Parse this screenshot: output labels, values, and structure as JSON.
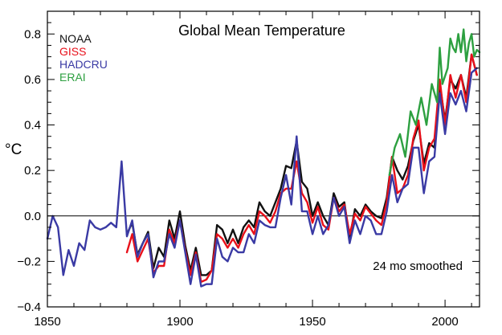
{
  "chart_data": {
    "type": "line",
    "title": "Global Mean Temperature",
    "ylabel": "°C",
    "xlabel": "",
    "xlim": [
      1850,
      2013
    ],
    "ylim": [
      -0.4,
      0.9
    ],
    "x_ticks": [
      1850,
      1900,
      1950,
      2000
    ],
    "y_ticks": [
      -0.4,
      -0.2,
      0.0,
      0.2,
      0.4,
      0.6,
      0.8
    ],
    "y_tick_labels": [
      "−0.4",
      "−0.2",
      "0.0",
      "0.2",
      "0.4",
      "0.6",
      "0.8"
    ],
    "zero_line": true,
    "grid": false,
    "legend_position": "top-left",
    "annotation": "24 mo smoothed",
    "series": [
      {
        "name": "NOAA",
        "color": "#111111",
        "x": [
          1880,
          1882,
          1884,
          1886,
          1888,
          1890,
          1892,
          1894,
          1896,
          1898,
          1900,
          1902,
          1904,
          1906,
          1908,
          1910,
          1912,
          1914,
          1916,
          1918,
          1920,
          1922,
          1924,
          1926,
          1928,
          1930,
          1932,
          1934,
          1936,
          1938,
          1940,
          1942,
          1944,
          1946,
          1948,
          1950,
          1952,
          1954,
          1956,
          1958,
          1960,
          1962,
          1964,
          1966,
          1968,
          1970,
          1972,
          1974,
          1976,
          1978,
          1980,
          1982,
          1984,
          1986,
          1988,
          1990,
          1992,
          1994,
          1996,
          1998,
          2000,
          2002,
          2004,
          2006,
          2008,
          2010,
          2012
        ],
        "y": [
          -0.08,
          -0.03,
          -0.17,
          -0.12,
          -0.07,
          -0.23,
          -0.14,
          -0.18,
          -0.02,
          -0.1,
          0.02,
          -0.13,
          -0.24,
          -0.14,
          -0.26,
          -0.26,
          -0.24,
          -0.04,
          -0.06,
          -0.12,
          -0.06,
          -0.12,
          -0.05,
          -0.02,
          -0.05,
          0.06,
          0.02,
          0.0,
          0.06,
          0.12,
          0.22,
          0.21,
          0.33,
          0.15,
          0.12,
          0.0,
          0.06,
          0.0,
          -0.04,
          0.1,
          0.04,
          0.06,
          -0.1,
          0.03,
          0.0,
          0.05,
          0.02,
          0.0,
          -0.01,
          0.08,
          0.26,
          0.2,
          0.16,
          0.22,
          0.33,
          0.4,
          0.23,
          0.32,
          0.3,
          0.58,
          0.42,
          0.6,
          0.56,
          0.62,
          0.52,
          0.71,
          0.62
        ]
      },
      {
        "name": "GISS",
        "color": "#e8101a",
        "x": [
          1880,
          1882,
          1884,
          1886,
          1888,
          1890,
          1892,
          1894,
          1896,
          1898,
          1900,
          1902,
          1904,
          1906,
          1908,
          1910,
          1912,
          1914,
          1916,
          1918,
          1920,
          1922,
          1924,
          1926,
          1928,
          1930,
          1932,
          1934,
          1936,
          1938,
          1940,
          1942,
          1944,
          1946,
          1948,
          1950,
          1952,
          1954,
          1956,
          1958,
          1960,
          1962,
          1964,
          1966,
          1968,
          1970,
          1972,
          1974,
          1976,
          1978,
          1980,
          1982,
          1984,
          1986,
          1988,
          1990,
          1992,
          1994,
          1996,
          1998,
          2000,
          2002,
          2004,
          2006,
          2008,
          2010,
          2012
        ],
        "y": [
          -0.16,
          -0.08,
          -0.2,
          -0.15,
          -0.1,
          -0.25,
          -0.22,
          -0.22,
          -0.06,
          -0.12,
          -0.02,
          -0.15,
          -0.26,
          -0.16,
          -0.29,
          -0.28,
          -0.24,
          -0.08,
          -0.1,
          -0.14,
          -0.1,
          -0.14,
          -0.08,
          -0.04,
          -0.08,
          0.02,
          0.0,
          -0.03,
          0.02,
          0.1,
          0.12,
          0.12,
          0.24,
          0.1,
          0.06,
          -0.03,
          0.04,
          -0.04,
          -0.06,
          0.08,
          0.02,
          0.05,
          -0.08,
          0.01,
          -0.02,
          0.04,
          0.01,
          -0.02,
          -0.04,
          0.06,
          0.26,
          0.1,
          0.12,
          0.18,
          0.34,
          0.42,
          0.2,
          0.3,
          0.34,
          0.6,
          0.4,
          0.62,
          0.52,
          0.62,
          0.5,
          0.71,
          0.62
        ]
      },
      {
        "name": "HADCRU",
        "color": "#3a3aa4",
        "x": [
          1850,
          1852,
          1854,
          1856,
          1858,
          1860,
          1862,
          1864,
          1866,
          1868,
          1870,
          1872,
          1874,
          1876,
          1878,
          1880,
          1882,
          1884,
          1886,
          1888,
          1890,
          1892,
          1894,
          1896,
          1898,
          1900,
          1902,
          1904,
          1906,
          1908,
          1910,
          1912,
          1914,
          1916,
          1918,
          1920,
          1922,
          1924,
          1926,
          1928,
          1930,
          1932,
          1934,
          1936,
          1938,
          1940,
          1942,
          1944,
          1946,
          1948,
          1950,
          1952,
          1954,
          1956,
          1958,
          1960,
          1962,
          1964,
          1966,
          1968,
          1970,
          1972,
          1974,
          1976,
          1978,
          1980,
          1982,
          1984,
          1986,
          1988,
          1990,
          1992,
          1994,
          1996,
          1998,
          2000,
          2002,
          2004,
          2006,
          2008,
          2010,
          2012
        ],
        "y": [
          -0.1,
          0.0,
          -0.05,
          -0.26,
          -0.15,
          -0.22,
          -0.12,
          -0.15,
          -0.02,
          -0.05,
          -0.06,
          -0.05,
          -0.03,
          -0.05,
          0.24,
          -0.09,
          -0.02,
          -0.18,
          -0.12,
          -0.08,
          -0.27,
          -0.2,
          -0.2,
          -0.08,
          -0.14,
          -0.02,
          -0.16,
          -0.3,
          -0.17,
          -0.31,
          -0.3,
          -0.3,
          -0.1,
          -0.18,
          -0.2,
          -0.14,
          -0.16,
          -0.16,
          -0.08,
          -0.12,
          -0.02,
          -0.04,
          -0.05,
          -0.05,
          0.08,
          0.18,
          0.05,
          0.35,
          0.02,
          0.02,
          -0.08,
          0.0,
          -0.08,
          -0.04,
          0.08,
          0.0,
          0.04,
          -0.12,
          -0.02,
          -0.08,
          0.0,
          -0.02,
          -0.08,
          -0.08,
          0.02,
          0.18,
          0.06,
          0.12,
          0.14,
          0.3,
          0.3,
          0.1,
          0.24,
          0.26,
          0.54,
          0.36,
          0.54,
          0.49,
          0.55,
          0.46,
          0.63,
          0.65
        ]
      },
      {
        "name": "ERAI",
        "color": "#2da040",
        "x": [
          1979,
          1981,
          1983,
          1985,
          1987,
          1989,
          1991,
          1993,
          1995,
          1997,
          1998,
          1999,
          2001,
          2002,
          2003,
          2004,
          2005,
          2006,
          2007,
          2008,
          2009,
          2010,
          2011,
          2012,
          2013
        ],
        "y": [
          0.18,
          0.3,
          0.36,
          0.26,
          0.46,
          0.4,
          0.52,
          0.4,
          0.58,
          0.5,
          0.74,
          0.58,
          0.65,
          0.78,
          0.74,
          0.72,
          0.8,
          0.72,
          0.82,
          0.68,
          0.76,
          0.8,
          0.7,
          0.73,
          0.72
        ]
      }
    ]
  }
}
